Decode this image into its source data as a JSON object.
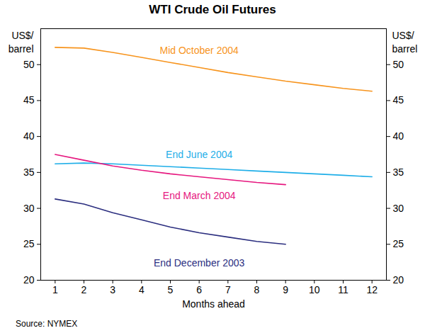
{
  "chart_data": {
    "type": "line",
    "title": "WTI Crude Oil Futures",
    "ylabel": "US$/ barrel",
    "y2label": "US$/ barrel",
    "xlabel": "Months ahead",
    "caption": "Source: NYMEX",
    "x": [
      1,
      2,
      3,
      4,
      5,
      6,
      7,
      8,
      9,
      10,
      11,
      12
    ],
    "series": [
      {
        "name": "Mid October 2004",
        "color": "#f7941d",
        "values": [
          52.4,
          52.3,
          51.7,
          51.0,
          50.3,
          49.6,
          48.9,
          48.3,
          47.7,
          47.2,
          46.7,
          46.3
        ]
      },
      {
        "name": "End June 2004",
        "color": "#1eaee8",
        "values": [
          36.2,
          36.3,
          36.2,
          36.0,
          35.8,
          35.6,
          35.4,
          35.2,
          35.0,
          34.8,
          34.6,
          34.4
        ]
      },
      {
        "name": "End March 2004",
        "color": "#e6177f",
        "values": [
          37.5,
          36.7,
          35.9,
          35.3,
          34.8,
          34.4,
          34.0,
          33.6,
          33.3,
          null,
          null,
          null
        ]
      },
      {
        "name": "End December 2003",
        "color": "#2b2e7f",
        "values": [
          31.3,
          30.6,
          29.4,
          28.4,
          27.4,
          26.6,
          26.0,
          25.4,
          25.0,
          null,
          null,
          null
        ]
      }
    ],
    "xlim": [
      0.5,
      12.5
    ],
    "xticks": [
      1,
      2,
      3,
      4,
      5,
      6,
      7,
      8,
      9,
      10,
      11,
      12
    ],
    "ylim": [
      20,
      55
    ],
    "yticks": [
      20,
      25,
      30,
      35,
      40,
      45,
      50
    ],
    "y2lim": [
      20,
      55
    ],
    "y2ticks": [
      20,
      25,
      30,
      35,
      40,
      45,
      50
    ],
    "grid": false
  }
}
